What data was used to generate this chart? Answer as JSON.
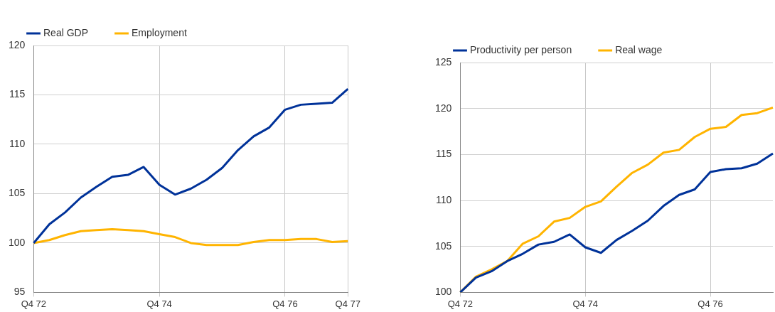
{
  "chart_data": [
    {
      "type": "line",
      "categories": [
        "Q4 72",
        null,
        null,
        null,
        null,
        null,
        null,
        null,
        "Q4 74",
        null,
        null,
        null,
        null,
        null,
        null,
        null,
        "Q4 76",
        null,
        null,
        null,
        "Q4 77"
      ],
      "ylim": [
        95,
        120
      ],
      "yticks": [
        95,
        100,
        105,
        110,
        115,
        120
      ],
      "grid": true,
      "legend": "top left",
      "series": [
        {
          "name": "Real GDP",
          "color": "#003299",
          "values": [
            100,
            101.9,
            103.1,
            104.6,
            105.7,
            106.7,
            106.9,
            107.7,
            105.9,
            104.9,
            105.5,
            106.4,
            107.6,
            109.4,
            110.8,
            111.7,
            113.5,
            114.0,
            114.1,
            114.2,
            115.6
          ]
        },
        {
          "name": "Employment",
          "color": "#ffb400",
          "values": [
            100,
            100.3,
            100.8,
            101.2,
            101.3,
            101.4,
            101.3,
            101.2,
            100.9,
            100.6,
            100.0,
            99.8,
            99.8,
            99.8,
            100.1,
            100.3,
            100.3,
            100.4,
            100.4,
            100.1,
            100.2
          ]
        }
      ]
    },
    {
      "type": "line",
      "categories": [
        "Q4 72",
        null,
        null,
        null,
        null,
        null,
        null,
        null,
        "Q4 74",
        null,
        null,
        null,
        null,
        null,
        null,
        null,
        "Q4 76",
        null,
        null,
        null,
        null
      ],
      "ylim": [
        100,
        125
      ],
      "yticks": [
        100,
        105,
        110,
        115,
        120,
        125
      ],
      "grid": true,
      "legend": "top left",
      "series": [
        {
          "name": "Productivity per person",
          "color": "#003299",
          "values": [
            100,
            101.6,
            102.3,
            103.4,
            104.2,
            105.2,
            105.5,
            106.3,
            104.9,
            104.3,
            105.7,
            106.7,
            107.8,
            109.4,
            110.6,
            111.2,
            113.1,
            113.4,
            113.5,
            114.0,
            115.1
          ]
        },
        {
          "name": "Real wage",
          "color": "#ffb400",
          "values": [
            100,
            101.7,
            102.5,
            103.4,
            105.3,
            106.1,
            107.7,
            108.1,
            109.3,
            109.9,
            111.5,
            113.0,
            113.9,
            115.2,
            115.5,
            116.9,
            117.8,
            118.0,
            119.3,
            119.5,
            120.1
          ]
        }
      ]
    }
  ]
}
